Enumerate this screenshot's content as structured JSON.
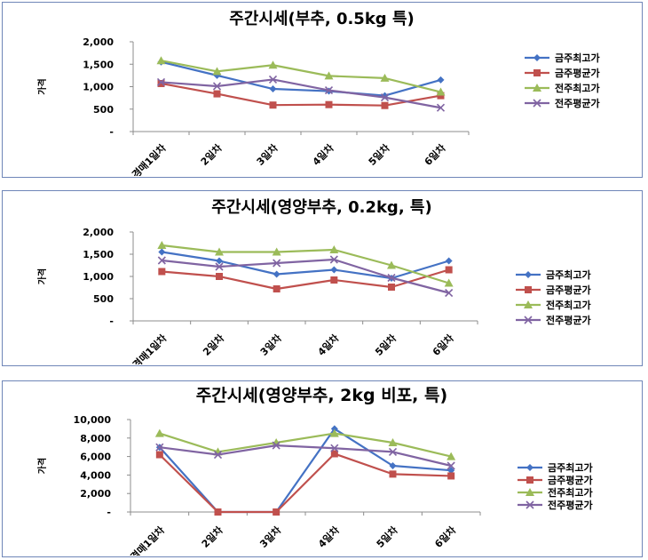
{
  "colors": {
    "border": "#6f86b8",
    "axis": "#8c8c8c",
    "series": [
      "#4472c4",
      "#c0504d",
      "#9bbb59",
      "#8064a2"
    ],
    "markers": [
      "diamond",
      "square",
      "triangle",
      "x"
    ]
  },
  "chart_data": [
    {
      "type": "line",
      "title": "주간시세(부추, 0.5kg 특)",
      "xlabel": "",
      "ylabel": "가격",
      "categories": [
        "경매1일차",
        "2일차",
        "3일차",
        "4일차",
        "5일차",
        "6일차"
      ],
      "ylim": [
        0,
        2000
      ],
      "yticks": [
        0,
        500,
        1000,
        1500,
        2000
      ],
      "ytick_labels": [
        "-",
        "500",
        "1,000",
        "1,500",
        "2,000"
      ],
      "grid": false,
      "legend": "right",
      "series": [
        {
          "name": "금주최고가",
          "values": [
            1550,
            1250,
            950,
            900,
            800,
            1150
          ]
        },
        {
          "name": "금주평균가",
          "values": [
            1070,
            840,
            590,
            600,
            580,
            800
          ]
        },
        {
          "name": "전주최고가",
          "values": [
            1580,
            1340,
            1480,
            1240,
            1190,
            880
          ]
        },
        {
          "name": "전주평균가",
          "values": [
            1100,
            1010,
            1160,
            920,
            760,
            530
          ]
        }
      ]
    },
    {
      "type": "line",
      "title": "주간시세(영양부추, 0.2kg, 특)",
      "xlabel": "",
      "ylabel": "가격",
      "categories": [
        "경매1일차",
        "2일차",
        "3일차",
        "4일차",
        "5일차",
        "6일차"
      ],
      "ylim": [
        0,
        2000
      ],
      "yticks": [
        0,
        500,
        1000,
        1500,
        2000
      ],
      "ytick_labels": [
        "-",
        "500",
        "1,000",
        "1,500",
        "2,000"
      ],
      "grid": false,
      "legend": "right",
      "series": [
        {
          "name": "금주최고가",
          "values": [
            1550,
            1350,
            1050,
            1150,
            960,
            1350
          ]
        },
        {
          "name": "금주평균가",
          "values": [
            1110,
            1000,
            720,
            920,
            760,
            1150
          ]
        },
        {
          "name": "전주최고가",
          "values": [
            1700,
            1550,
            1550,
            1600,
            1250,
            850
          ]
        },
        {
          "name": "전주평균가",
          "values": [
            1360,
            1220,
            1300,
            1380,
            970,
            630
          ]
        }
      ]
    },
    {
      "type": "line",
      "title": "주간시세(영양부추, 2kg 비포, 특)",
      "xlabel": "",
      "ylabel": "가격",
      "categories": [
        "경매1일차",
        "2일차",
        "3일차",
        "4일차",
        "5일차",
        "6일차"
      ],
      "ylim": [
        0,
        10000
      ],
      "yticks": [
        0,
        2000,
        4000,
        6000,
        8000,
        10000
      ],
      "ytick_labels": [
        "-",
        "2,000",
        "4,000",
        "6,000",
        "8,000",
        "10,000"
      ],
      "grid": false,
      "legend": "right",
      "series": [
        {
          "name": "금주최고가",
          "values": [
            7000,
            0,
            0,
            9000,
            5000,
            4500
          ]
        },
        {
          "name": "금주평균가",
          "values": [
            6200,
            0,
            0,
            6300,
            4100,
            3900
          ]
        },
        {
          "name": "전주최고가",
          "values": [
            8500,
            6500,
            7500,
            8500,
            7500,
            6000
          ]
        },
        {
          "name": "전주평균가",
          "values": [
            7000,
            6200,
            7200,
            6900,
            6500,
            5000
          ]
        }
      ]
    }
  ]
}
